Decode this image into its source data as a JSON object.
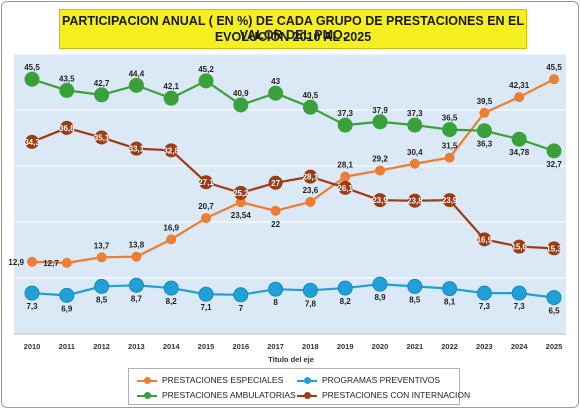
{
  "chart_data": {
    "type": "line",
    "title_line1": "PARTICIPACION ANUAL ( EN %) DE CADA GRUPO DE PRESTACIONES EN EL VALOR DEL PMO.",
    "title_line2": "EVOLUCIÓN 2010 AL 2025",
    "xlabel": "Título del eje",
    "ylim": [
      0,
      50
    ],
    "grid": true,
    "legend_position": "bottom",
    "x": [
      "2010",
      "2011",
      "2012",
      "2013",
      "2014",
      "2015",
      "2016",
      "2017",
      "2018",
      "2019",
      "2020",
      "2021",
      "2022",
      "2023",
      "2024",
      "2025"
    ],
    "series": [
      {
        "name": "PRESTACIONES ESPECIALES",
        "color": "#ed7d31",
        "values": [
          12.9,
          12.7,
          13.7,
          13.8,
          16.9,
          20.7,
          23.54,
          22,
          23.6,
          28.1,
          29.2,
          30.4,
          31.5,
          39.5,
          42.31,
          45.5
        ],
        "labels": [
          "12,9",
          "12,7",
          "13,7",
          "13,8",
          "16,9",
          "20,7",
          "23,54",
          "22",
          "23,6",
          "28,1",
          "29,2",
          "30,4",
          "31,5",
          "39,5",
          "42,31",
          "45,5"
        ]
      },
      {
        "name": "PROGRAMAS PREVENTIVOS",
        "color": "#1fa0d8",
        "values": [
          7.3,
          6.9,
          8.5,
          8.7,
          8.2,
          7.1,
          7,
          8,
          7.8,
          8.2,
          8.9,
          8.5,
          8.1,
          7.3,
          7.3,
          6.5
        ],
        "labels": [
          "7,3",
          "6,9",
          "8,5",
          "8,7",
          "8,2",
          "7,1",
          "7",
          "8",
          "7,8",
          "8,2",
          "8,9",
          "8,5",
          "8,1",
          "7,3",
          "7,3",
          "6,5"
        ]
      },
      {
        "name": "PRESTACIONES AMBULATORIAS",
        "color": "#3aa03a",
        "values": [
          45.5,
          43.5,
          42.7,
          44.4,
          42.1,
          45.2,
          40.9,
          43,
          40.5,
          37.3,
          37.9,
          37.3,
          36.5,
          36.3,
          34.78,
          32.7
        ],
        "labels": [
          "45,5",
          "43,5",
          "42,7",
          "44,4",
          "42,1",
          "45,2",
          "40,9",
          "43",
          "40,5",
          "37,3",
          "37,9",
          "37,3",
          "36,5",
          "36,3",
          "34,78",
          "32,7"
        ]
      },
      {
        "name": "PRESTACIONES CON INTERNACION",
        "color": "#9c3b14",
        "values": [
          34.3,
          36.8,
          35.1,
          33.1,
          32.8,
          27.1,
          25.2,
          27,
          28.1,
          26.1,
          23.9,
          23.8,
          23.9,
          16.9,
          15.6,
          15.3
        ],
        "labels": [
          "34,3",
          "36,8",
          "35,1",
          "33,1",
          "32,8",
          "27,1",
          "25,2",
          "27",
          "28,1",
          "26,1",
          "23,9",
          "23,8",
          "23,9",
          "16,9",
          "15,6",
          "15,3"
        ]
      }
    ]
  }
}
